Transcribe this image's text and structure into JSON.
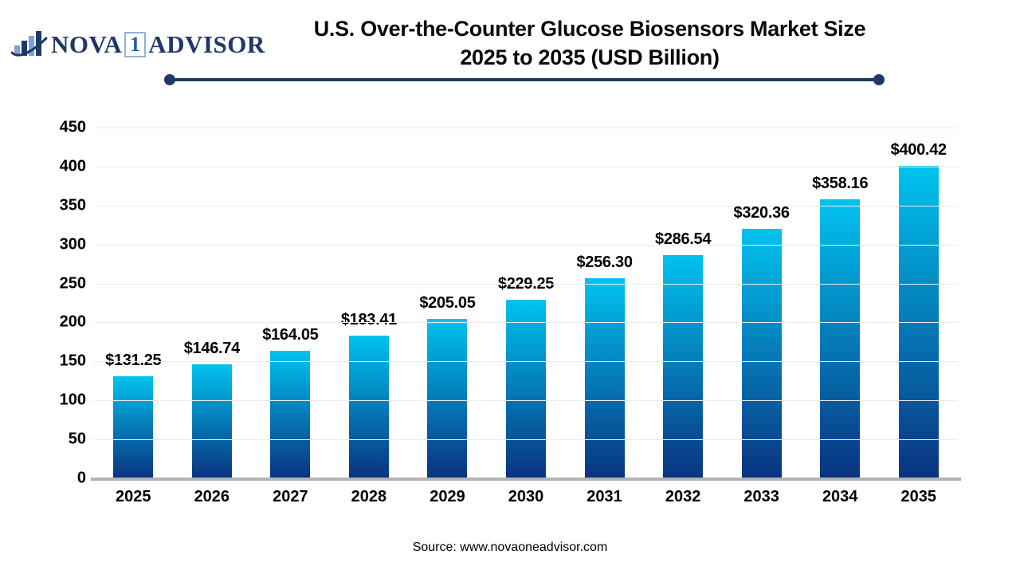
{
  "logo": {
    "text_part1": "NOVA",
    "text_boxed": "1",
    "text_part2": "ADVISOR",
    "icon": "bar-chart-swoosh-icon",
    "color_navy": "#1f3864",
    "color_lightblue": "#7ba3d4"
  },
  "header": {
    "title_line1": "U.S. Over-the-Counter Glucose Biosensors Market Size",
    "title_line2": "2025 to 2035 (USD Billion)"
  },
  "chart_data": {
    "type": "bar",
    "title": "U.S. Over-the-Counter Glucose Biosensors Market Size 2025 to 2035 (USD Billion)",
    "categories": [
      "2025",
      "2026",
      "2027",
      "2028",
      "2029",
      "2030",
      "2031",
      "2032",
      "2033",
      "2034",
      "2035"
    ],
    "values": [
      131.25,
      146.74,
      164.05,
      183.41,
      205.05,
      229.25,
      256.3,
      286.54,
      320.36,
      358.16,
      400.42
    ],
    "value_labels": [
      "$131.25",
      "$146.74",
      "$164.05",
      "$183.41",
      "$205.05",
      "$229.25",
      "$256.30",
      "$286.54",
      "$320.36",
      "$358.16",
      "$400.42"
    ],
    "xlabel": "",
    "ylabel": "",
    "ylim": [
      0,
      450
    ],
    "ytick_step": 50,
    "ytick_labels": [
      "0",
      "50",
      "100",
      "150",
      "200",
      "250",
      "300",
      "350",
      "400",
      "450"
    ],
    "grid": "horizontal-only",
    "legend": "none",
    "bar_gradient_top": "#00c3ef",
    "bar_gradient_bottom": "#0a3380",
    "grid_color": "#ececec",
    "baseline_color": "#b3b3b3",
    "accent_navy": "#1f3864"
  },
  "footer": {
    "source": "Source: www.novaoneadvisor.com"
  }
}
